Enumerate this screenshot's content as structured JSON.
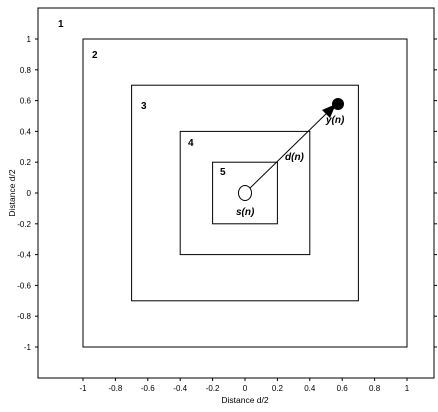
{
  "diagram": {
    "x_axis_label": "Distance d/2",
    "y_axis_label": "Distance d/2",
    "x_ticks": [
      "-1",
      "-0.8",
      "-0.6",
      "-0.4",
      "-0.2",
      "0",
      "0.2",
      "0.4",
      "0.6",
      "0.8",
      "1"
    ],
    "y_ticks": [
      "1",
      "0.8",
      "0.6",
      "0.4",
      "0.2",
      "0",
      "-0.2",
      "-0.4",
      "-0.6",
      "-0.8",
      "-1"
    ],
    "regions": [
      {
        "label": "1",
        "half_size": 1.2
      },
      {
        "label": "2",
        "half_size": 1.0
      },
      {
        "label": "3",
        "half_size": 0.7
      },
      {
        "label": "4",
        "half_size": 0.4
      },
      {
        "label": "5",
        "half_size": 0.2
      }
    ],
    "source_label": "s(n)",
    "destination_label": "y(n)",
    "distance_label": "d(n)",
    "source_point": [
      0,
      0
    ],
    "destination_point": [
      0.57,
      0.57
    ]
  }
}
